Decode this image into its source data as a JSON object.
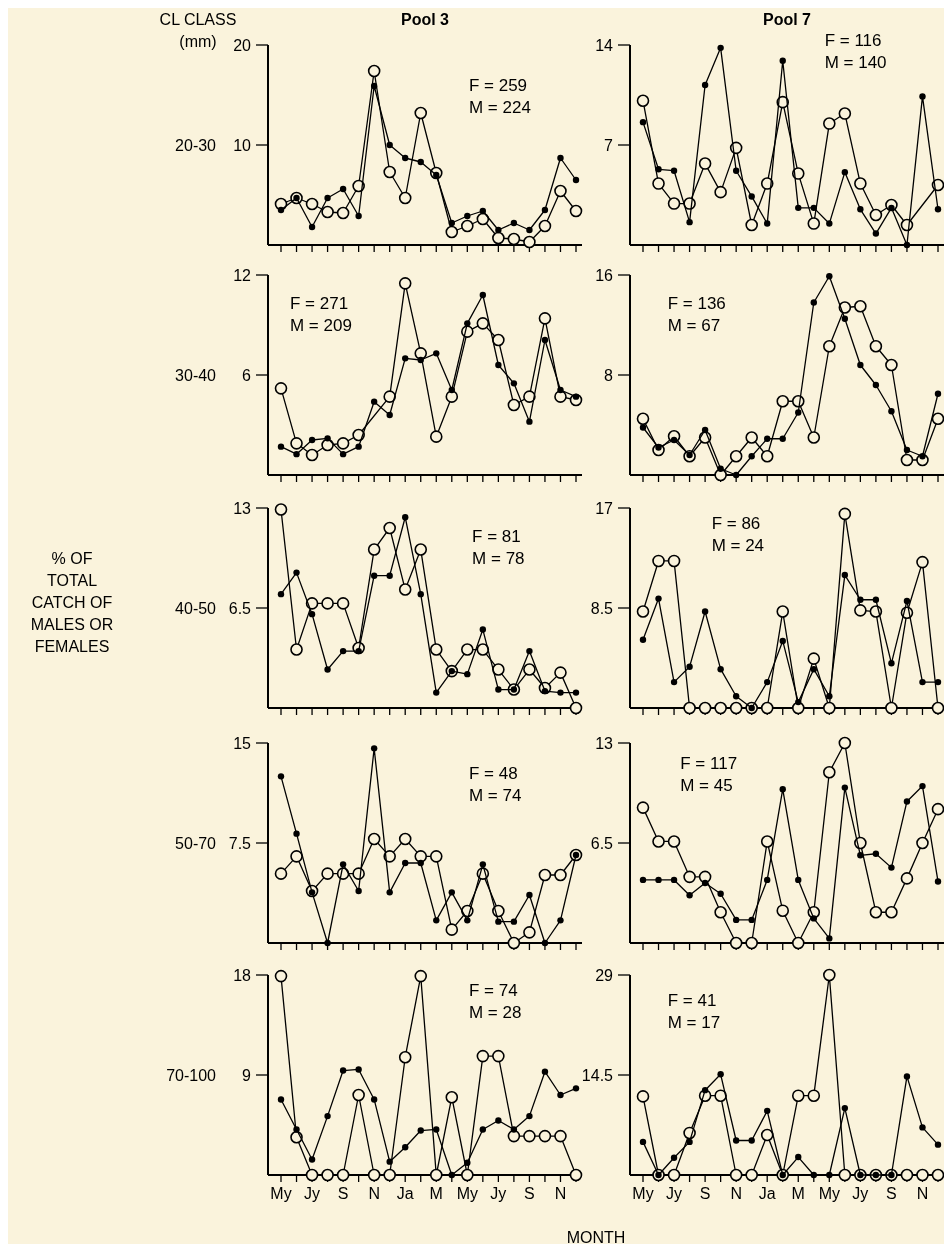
{
  "chart_data": [
    {
      "type": "line",
      "title": "Pool 3",
      "ylabel": "20-30",
      "annotations": [
        "F = 259",
        "M = 224",
        "CL CLASS (mm)"
      ],
      "categories": [
        null,
        null,
        null,
        null,
        null,
        null,
        null,
        null,
        null,
        null,
        null,
        null,
        null,
        null,
        null,
        null,
        null,
        null,
        null,
        null
      ],
      "ylim": [
        0,
        20
      ],
      "yticks": [
        10,
        20
      ],
      "series": [
        {
          "color": "#000000",
          "marker": "circle",
          "values": [
            4.1,
            4.7,
            4.1,
            3.3,
            3.2,
            5.9,
            17.4,
            7.3,
            4.7,
            13.2,
            7.2,
            1.3,
            1.9,
            2.6,
            0.7,
            0.6,
            0.3,
            1.9,
            5.4,
            3.4
          ]
        },
        {
          "color": "#000000",
          "marker": "circle",
          "values": [
            3.5,
            4.7,
            1.8,
            4.7,
            5.6,
            2.9,
            15.9,
            10,
            8.7,
            8.3,
            7.0,
            2.2,
            2.9,
            3.4,
            1.5,
            2.2,
            1.5,
            3.5,
            8.7,
            6.5
          ]
        }
      ]
    },
    {
      "type": "line",
      "title": "Pool 7",
      "annotations": [
        "F = 116",
        "M = 140"
      ],
      "categories": [
        null,
        null,
        null,
        null,
        null,
        null,
        null,
        null,
        null,
        null,
        null,
        null,
        null,
        null,
        null,
        null,
        null,
        null,
        null,
        null
      ],
      "ylim": [
        0,
        14
      ],
      "yticks": [
        7,
        14
      ],
      "series": [
        {
          "color": "#000000",
          "marker": "circle",
          "values": [
            10.1,
            4.3,
            2.9,
            2.9,
            5.7,
            3.7,
            6.8,
            1.4,
            4.3,
            10.0,
            5.0,
            1.5,
            8.5,
            9.2,
            4.3,
            2.1,
            2.8,
            1.4,
            null,
            4.2
          ]
        },
        {
          "color": "#000000",
          "marker": "circle",
          "values": [
            8.6,
            5.3,
            5.2,
            1.6,
            11.2,
            13.8,
            5.2,
            3.4,
            1.5,
            12.9,
            2.6,
            2.6,
            1.5,
            5.1,
            2.5,
            0.8,
            2.6,
            0,
            10.4,
            2.5
          ]
        }
      ]
    },
    {
      "type": "line",
      "ylabel": "30-40",
      "annotations": [
        "F = 271",
        "M = 209"
      ],
      "categories": [
        null,
        null,
        null,
        null,
        null,
        null,
        null,
        null,
        null,
        null,
        null,
        null,
        null,
        null,
        null,
        null,
        null,
        null,
        null,
        null
      ],
      "ylim": [
        0,
        12
      ],
      "yticks": [
        6,
        12
      ],
      "series": [
        {
          "color": "#000000",
          "marker": "circle",
          "values": [
            5.2,
            1.9,
            1.2,
            1.8,
            1.9,
            2.4,
            null,
            4.7,
            11.5,
            7.3,
            2.3,
            4.7,
            8.6,
            9.1,
            8.1,
            4.2,
            4.7,
            9.4,
            4.7,
            4.5
          ]
        },
        {
          "color": "#000000",
          "marker": "circle",
          "values": [
            1.7,
            1.25,
            2.1,
            2.2,
            1.25,
            1.7,
            4.4,
            3.6,
            7.0,
            6.9,
            7.3,
            5.1,
            9.1,
            10.8,
            6.6,
            5.5,
            3.2,
            8.1,
            5.1,
            4.7
          ]
        }
      ]
    },
    {
      "type": "line",
      "annotations": [
        "F = 136",
        "M = 67"
      ],
      "categories": [
        null,
        null,
        null,
        null,
        null,
        null,
        null,
        null,
        null,
        null,
        null,
        null,
        null,
        null,
        null,
        null,
        null,
        null,
        null,
        null
      ],
      "ylim": [
        0,
        16
      ],
      "yticks": [
        8,
        16
      ],
      "series": [
        {
          "color": "#000000",
          "marker": "circle",
          "values": [
            4.5,
            2.0,
            3.1,
            1.5,
            3.0,
            0,
            1.5,
            3.0,
            1.5,
            5.9,
            5.9,
            3.0,
            10.3,
            13.4,
            13.5,
            10.3,
            8.8,
            1.2,
            1.2,
            4.5
          ]
        },
        {
          "color": "#000000",
          "marker": "circle",
          "values": [
            3.8,
            2.2,
            2.8,
            1.6,
            3.6,
            0.5,
            0,
            1.5,
            2.9,
            2.9,
            5.0,
            13.8,
            15.9,
            12.5,
            8.8,
            7.2,
            5.1,
            2.0,
            1.5,
            6.5
          ]
        }
      ]
    },
    {
      "type": "line",
      "ylabel": "40-50",
      "annotations": [
        "F = 81",
        "M = 78",
        "% OF TOTAL CATCH OF MALES OR FEMALES"
      ],
      "categories": [
        null,
        null,
        null,
        null,
        null,
        null,
        null,
        null,
        null,
        null,
        null,
        null,
        null,
        null,
        null,
        null,
        null,
        null,
        null,
        null
      ],
      "ylim": [
        0,
        13
      ],
      "yticks": [
        6.5,
        13
      ],
      "series": [
        {
          "color": "#000000",
          "marker": "circle",
          "values": [
            12.9,
            3.8,
            6.8,
            6.8,
            6.8,
            3.9,
            10.3,
            11.7,
            7.7,
            10.3,
            3.8,
            2.4,
            3.8,
            3.8,
            2.5,
            1.2,
            2.5,
            1.3,
            2.3,
            0
          ]
        },
        {
          "color": "#000000",
          "marker": "circle",
          "values": [
            7.4,
            8.8,
            6.1,
            2.5,
            3.7,
            3.7,
            8.6,
            8.6,
            12.4,
            7.4,
            1.0,
            2.4,
            2.2,
            5.1,
            1.2,
            1.2,
            3.7,
            1.1,
            1.0,
            1.0
          ]
        }
      ]
    },
    {
      "type": "line",
      "annotations": [
        "F = 86",
        "M = 24"
      ],
      "categories": [
        null,
        null,
        null,
        null,
        null,
        null,
        null,
        null,
        null,
        null,
        null,
        null,
        null,
        null,
        null,
        null,
        null,
        null,
        null,
        null
      ],
      "ylim": [
        0,
        17
      ],
      "yticks": [
        8.5,
        17
      ],
      "series": [
        {
          "color": "#000000",
          "marker": "circle",
          "values": [
            8.2,
            12.5,
            12.5,
            0,
            0,
            0,
            0,
            0,
            0,
            8.2,
            0,
            4.2,
            0,
            16.5,
            8.3,
            8.2,
            0,
            8.1,
            12.4,
            0
          ]
        },
        {
          "color": "#000000",
          "marker": "circle",
          "values": [
            5.8,
            9.3,
            2.2,
            3.5,
            8.2,
            3.3,
            1.0,
            0,
            2.2,
            5.7,
            0.5,
            3.3,
            1.0,
            11.3,
            9.2,
            9.2,
            3.8,
            9.1,
            2.2,
            2.2
          ]
        }
      ]
    },
    {
      "type": "line",
      "ylabel": "50-70",
      "annotations": [
        "F = 48",
        "M = 74"
      ],
      "categories": [
        null,
        null,
        null,
        null,
        null,
        null,
        null,
        null,
        null,
        null,
        null,
        null,
        null,
        null,
        null,
        null,
        null,
        null,
        null,
        null
      ],
      "ylim": [
        0,
        15
      ],
      "yticks": [
        7.5,
        15
      ],
      "series": [
        {
          "color": "#000000",
          "marker": "circle",
          "values": [
            5.2,
            6.5,
            3.9,
            5.2,
            5.2,
            5.2,
            7.8,
            6.5,
            7.8,
            6.5,
            6.5,
            1.0,
            2.4,
            5.2,
            2.4,
            0,
            0.8,
            5.1,
            5.1,
            6.6
          ]
        },
        {
          "color": "#000000",
          "marker": "circle",
          "values": [
            12.5,
            8.2,
            3.8,
            0,
            5.9,
            3.9,
            14.6,
            3.8,
            6.0,
            6.0,
            1.7,
            3.8,
            1.7,
            5.9,
            1.6,
            1.6,
            3.6,
            0,
            1.7,
            6.6
          ]
        }
      ]
    },
    {
      "type": "line",
      "annotations": [
        "F = 117",
        "M = 45"
      ],
      "categories": [
        null,
        null,
        null,
        null,
        null,
        null,
        null,
        null,
        null,
        null,
        null,
        null,
        null,
        null,
        null,
        null,
        null,
        null,
        null,
        null
      ],
      "ylim": [
        0,
        13
      ],
      "yticks": [
        6.5,
        13
      ],
      "series": [
        {
          "color": "#000000",
          "marker": "circle",
          "values": [
            8.8,
            6.6,
            6.6,
            4.3,
            4.3,
            2.0,
            0,
            0,
            6.6,
            2.1,
            0,
            2.0,
            11.1,
            13,
            6.5,
            2.0,
            2.0,
            4.2,
            6.5,
            8.7
          ]
        },
        {
          "color": "#000000",
          "marker": "circle",
          "values": [
            4.1,
            4.1,
            4.1,
            3.1,
            3.9,
            3.2,
            1.5,
            1.5,
            4.1,
            10.0,
            4.1,
            1.6,
            0.3,
            10.1,
            5.7,
            5.8,
            4.9,
            9.2,
            10.2,
            4.0
          ]
        }
      ]
    },
    {
      "type": "line",
      "ylabel": "70-100",
      "xlabel": "MONTH",
      "annotations": [
        "F = 74",
        "M = 28"
      ],
      "categories": [
        "My",
        null,
        "Jy",
        null,
        "S",
        null,
        "N",
        null,
        "Ja",
        null,
        "M",
        null,
        "My",
        null,
        "Jy",
        null,
        "S",
        null,
        "N",
        null
      ],
      "ylim": [
        0,
        18
      ],
      "yticks": [
        9,
        18
      ],
      "series": [
        {
          "color": "#000000",
          "marker": "circle",
          "values": [
            17.9,
            3.4,
            0,
            0,
            0,
            7.2,
            0,
            0,
            10.6,
            17.9,
            0,
            7.0,
            0,
            10.7,
            10.7,
            3.5,
            3.5,
            3.5,
            3.5,
            0
          ]
        },
        {
          "color": "#000000",
          "marker": "circle",
          "values": [
            6.8,
            4.1,
            1.4,
            5.3,
            9.4,
            9.5,
            6.8,
            1.2,
            2.5,
            4.0,
            4.1,
            0,
            1.1,
            4.1,
            4.9,
            4.1,
            5.3,
            9.3,
            7.2,
            7.8
          ]
        }
      ]
    },
    {
      "type": "line",
      "annotations": [
        "F = 41",
        "M = 17"
      ],
      "categories": [
        "My",
        null,
        "Jy",
        null,
        "S",
        null,
        "N",
        null,
        "Ja",
        null,
        "M",
        null,
        "My",
        null,
        "Jy",
        null,
        "S",
        null,
        "N",
        null
      ],
      "ylim": [
        0,
        29
      ],
      "yticks": [
        14.5,
        29
      ],
      "series": [
        {
          "color": "#000000",
          "marker": "circle",
          "values": [
            11.4,
            0,
            0,
            6.1,
            11.5,
            11.5,
            0,
            0,
            5.8,
            0,
            11.5,
            11.5,
            29,
            0,
            0,
            0,
            0,
            0,
            0,
            0
          ]
        },
        {
          "color": "#000000",
          "marker": "circle",
          "values": [
            4.8,
            0,
            2.5,
            4.8,
            12.3,
            14.6,
            5.0,
            5.0,
            9.3,
            0,
            2.6,
            0,
            0,
            9.7,
            0,
            0,
            0,
            14.3,
            6.9,
            4.4
          ]
        }
      ]
    }
  ]
}
